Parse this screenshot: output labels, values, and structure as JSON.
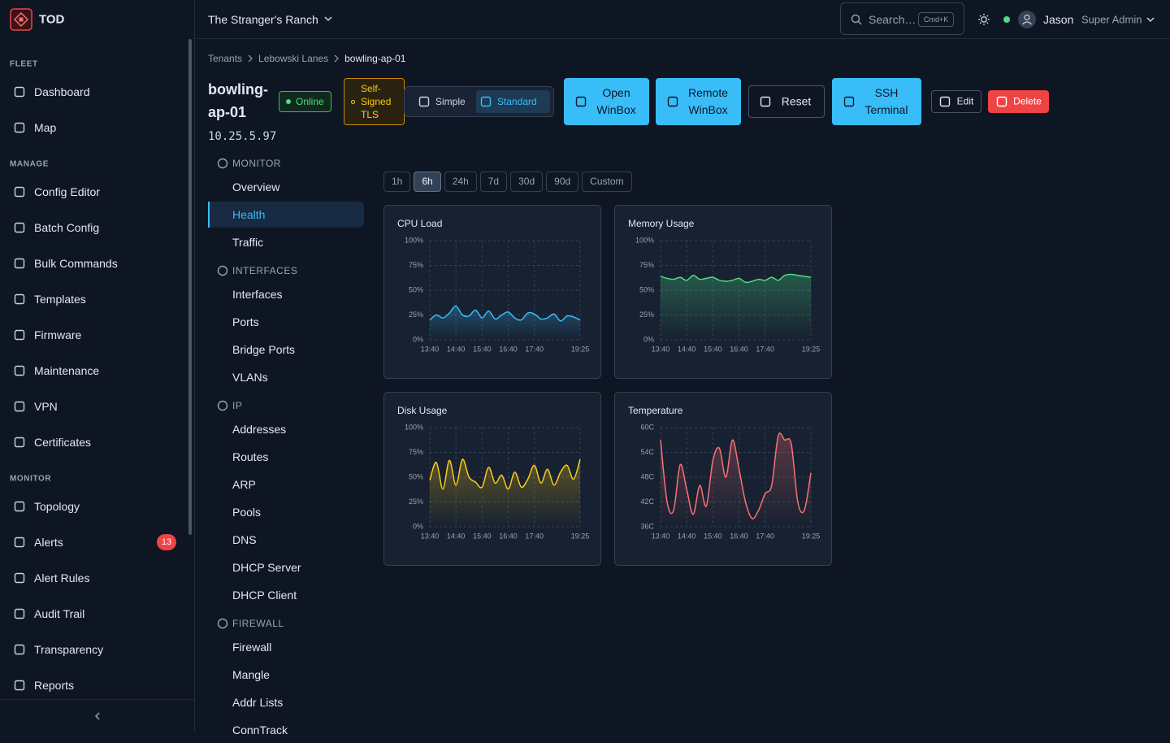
{
  "sidebar": {
    "brand": "TOD",
    "sections": [
      {
        "title": "FLEET",
        "items": [
          {
            "label": "Dashboard"
          },
          {
            "label": "Map"
          }
        ]
      },
      {
        "title": "MANAGE",
        "items": [
          {
            "label": "Config Editor"
          },
          {
            "label": "Batch Config"
          },
          {
            "label": "Bulk Commands"
          },
          {
            "label": "Templates"
          },
          {
            "label": "Firmware"
          },
          {
            "label": "Maintenance"
          },
          {
            "label": "VPN"
          },
          {
            "label": "Certificates"
          }
        ]
      },
      {
        "title": "MONITOR",
        "items": [
          {
            "label": "Topology"
          },
          {
            "label": "Alerts",
            "badge": 13
          },
          {
            "label": "Alert Rules"
          },
          {
            "label": "Audit Trail"
          },
          {
            "label": "Transparency"
          },
          {
            "label": "Reports"
          }
        ]
      }
    ]
  },
  "header": {
    "tenant": "The Stranger's Ranch",
    "search": "Search…",
    "shortcut": "Cmd+K",
    "user": "Jason",
    "role": "Super Admin"
  },
  "breadcrumbs": [
    "Tenants",
    "Lebowski Lanes",
    "bowling-ap-01"
  ],
  "device": {
    "name": "bowling-ap-01",
    "ip": "10.25.5.97",
    "status": "Online",
    "tls": "Self-Signed TLS",
    "view_modes": [
      "Simple",
      "Standard"
    ],
    "view_mode_selected": 1,
    "actions": [
      "Open WinBox",
      "Remote WinBox",
      "Reset",
      "SSH Terminal",
      "Edit",
      "Delete"
    ]
  },
  "subnav": {
    "groups": [
      {
        "title": "MONITOR",
        "items": [
          "Overview",
          "Health",
          "Traffic"
        ]
      },
      {
        "title": "INTERFACES",
        "items": [
          "Interfaces",
          "Ports",
          "Bridge Ports",
          "VLANs"
        ]
      },
      {
        "title": "IP",
        "items": [
          "Addresses",
          "Routes",
          "ARP",
          "Pools",
          "DNS",
          "DHCP Server",
          "DHCP Client"
        ]
      },
      {
        "title": "FIREWALL",
        "items": [
          "Firewall",
          "Mangle",
          "Addr Lists",
          "ConnTrack"
        ]
      }
    ],
    "active": [
      0,
      1
    ]
  },
  "time_ranges": {
    "options": [
      "1h",
      "6h",
      "24h",
      "7d",
      "30d",
      "90d",
      "Custom"
    ],
    "selected": 1
  },
  "chart_data": [
    {
      "type": "area",
      "title": "CPU Load",
      "color": "#38bdf8",
      "grid": true,
      "categories": [
        "13:40",
        null,
        null,
        null,
        "14:40",
        null,
        null,
        null,
        "15:40",
        null,
        null,
        null,
        "16:40",
        null,
        null,
        null,
        "17:40",
        null,
        null,
        null,
        null,
        null,
        null,
        "19:25"
      ],
      "values": [
        20,
        25,
        22,
        27,
        34,
        25,
        24,
        30,
        22,
        29,
        21,
        25,
        28,
        22,
        20,
        27,
        26,
        21,
        22,
        26,
        19,
        24,
        23,
        20
      ],
      "ylim": [
        0,
        100
      ],
      "yticks": [
        {
          "value": 0,
          "label": "0%"
        },
        {
          "value": 25,
          "label": "25%"
        },
        {
          "value": 50,
          "label": "50%"
        },
        {
          "value": 75,
          "label": "75%"
        },
        {
          "value": 100,
          "label": "100%"
        }
      ]
    },
    {
      "type": "area",
      "title": "Memory Usage",
      "color": "#4ade80",
      "grid": true,
      "categories": [
        "13:40",
        null,
        null,
        null,
        "14:40",
        null,
        null,
        null,
        "15:40",
        null,
        null,
        null,
        "16:40",
        null,
        null,
        null,
        "17:40",
        null,
        null,
        null,
        null,
        null,
        null,
        "19:25"
      ],
      "values": [
        64,
        62,
        61,
        63,
        60,
        65,
        61,
        62,
        63,
        60,
        59,
        60,
        62,
        58,
        59,
        61,
        60,
        63,
        60,
        65,
        66,
        65,
        64,
        63
      ],
      "ylim": [
        0,
        100
      ],
      "yticks": [
        {
          "value": 0,
          "label": "0%"
        },
        {
          "value": 25,
          "label": "25%"
        },
        {
          "value": 50,
          "label": "50%"
        },
        {
          "value": 75,
          "label": "75%"
        },
        {
          "value": 100,
          "label": "100%"
        }
      ]
    },
    {
      "type": "area",
      "title": "Disk Usage",
      "color": "#facc15",
      "grid": true,
      "categories": [
        "13:40",
        null,
        null,
        null,
        "14:40",
        null,
        null,
        null,
        "15:40",
        null,
        null,
        null,
        "16:40",
        null,
        null,
        null,
        "17:40",
        null,
        null,
        null,
        null,
        null,
        null,
        "19:25"
      ],
      "values": [
        47,
        65,
        38,
        67,
        42,
        68,
        50,
        45,
        40,
        60,
        44,
        52,
        38,
        55,
        40,
        48,
        62,
        44,
        58,
        42,
        55,
        62,
        48,
        68
      ],
      "ylim": [
        0,
        100
      ],
      "yticks": [
        {
          "value": 0,
          "label": "0%"
        },
        {
          "value": 25,
          "label": "25%"
        },
        {
          "value": 50,
          "label": "50%"
        },
        {
          "value": 75,
          "label": "75%"
        },
        {
          "value": 100,
          "label": "100%"
        }
      ]
    },
    {
      "type": "area",
      "title": "Temperature",
      "color": "#f87171",
      "grid": true,
      "categories": [
        "13:40",
        null,
        null,
        null,
        "14:40",
        null,
        null,
        null,
        "15:40",
        null,
        null,
        null,
        "16:40",
        null,
        null,
        null,
        "17:40",
        null,
        null,
        null,
        null,
        null,
        null,
        "19:25"
      ],
      "values": [
        57,
        42,
        40,
        51,
        45,
        39,
        46,
        41,
        52,
        55,
        48,
        57,
        50,
        42,
        38,
        40,
        44,
        46,
        58,
        57,
        56,
        42,
        40,
        49
      ],
      "ylim": [
        36,
        60
      ],
      "yticks": [
        {
          "value": 36,
          "label": "36C"
        },
        {
          "value": 42,
          "label": "42C"
        },
        {
          "value": 48,
          "label": "48C"
        },
        {
          "value": 54,
          "label": "54C"
        },
        {
          "value": 60,
          "label": "60C"
        }
      ]
    }
  ]
}
